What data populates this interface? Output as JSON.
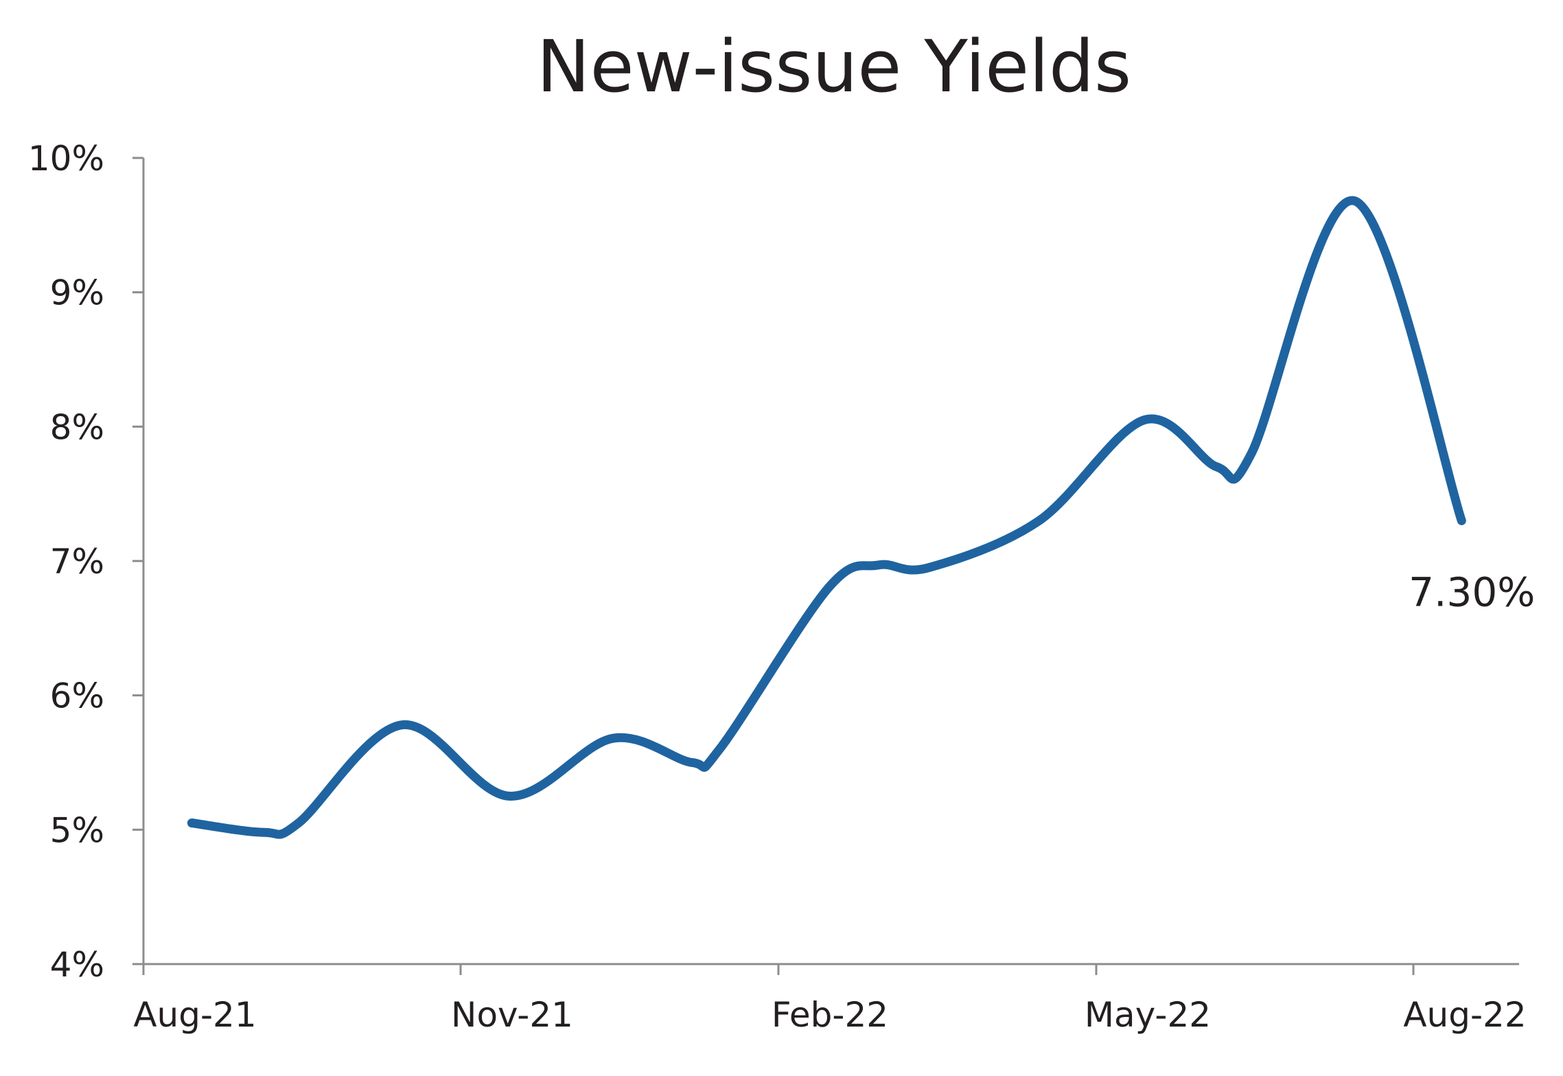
{
  "chart_data": {
    "type": "line",
    "title": "New-issue Yields",
    "xlabel": "",
    "ylabel": "",
    "x_tick_labels": [
      "Aug-21",
      "Nov-21",
      "Feb-22",
      "May-22",
      "Aug-22"
    ],
    "y_tick_labels": [
      "4%",
      "5%",
      "6%",
      "7%",
      "8%",
      "9%",
      "10%"
    ],
    "ylim": [
      4,
      10
    ],
    "y_unit": "%",
    "grid": false,
    "legend": "none",
    "series": [
      {
        "color": "#1f64a0",
        "points": [
          {
            "x": "2021-08-15",
            "y": 5.05
          },
          {
            "x": "2021-09-05",
            "y": 4.98
          },
          {
            "x": "2021-09-15",
            "y": 5.05
          },
          {
            "x": "2021-10-15",
            "y": 5.78
          },
          {
            "x": "2021-11-15",
            "y": 5.25
          },
          {
            "x": "2021-12-15",
            "y": 5.68
          },
          {
            "x": "2022-01-07",
            "y": 5.5
          },
          {
            "x": "2022-01-15",
            "y": 5.6
          },
          {
            "x": "2022-02-15",
            "y": 6.8
          },
          {
            "x": "2022-03-01",
            "y": 6.97
          },
          {
            "x": "2022-03-15",
            "y": 6.95
          },
          {
            "x": "2022-04-15",
            "y": 7.3
          },
          {
            "x": "2022-05-15",
            "y": 8.05
          },
          {
            "x": "2022-06-05",
            "y": 7.7
          },
          {
            "x": "2022-06-15",
            "y": 7.8
          },
          {
            "x": "2022-07-15",
            "y": 9.68
          },
          {
            "x": "2022-08-15",
            "y": 7.3
          }
        ]
      }
    ],
    "annotations": [
      {
        "text": "7.30%",
        "x": "2022-08-15",
        "y": 7.3
      }
    ]
  }
}
